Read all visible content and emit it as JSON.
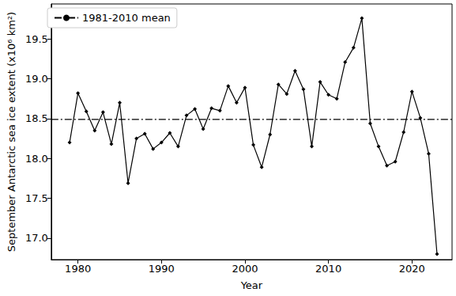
{
  "chart_data": {
    "type": "line",
    "x_label": "Year",
    "y_label": "September Antarctic sea ice extent (x10⁶ km²)",
    "x": [
      1979,
      1980,
      1981,
      1982,
      1983,
      1984,
      1985,
      1986,
      1987,
      1988,
      1989,
      1990,
      1991,
      1992,
      1993,
      1994,
      1995,
      1996,
      1997,
      1998,
      1999,
      2000,
      2001,
      2002,
      2003,
      2004,
      2005,
      2006,
      2007,
      2008,
      2009,
      2010,
      2011,
      2012,
      2013,
      2014,
      2015,
      2016,
      2017,
      2018,
      2019,
      2020,
      2021,
      2022,
      2023
    ],
    "series": [
      {
        "color": "#000000",
        "marker": "diamond",
        "line_style": "solid",
        "values": [
          18.2,
          18.82,
          18.59,
          18.35,
          18.58,
          18.18,
          18.7,
          17.69,
          18.25,
          18.31,
          18.12,
          18.2,
          18.32,
          18.15,
          18.54,
          18.62,
          18.37,
          18.63,
          18.6,
          18.91,
          18.7,
          18.89,
          18.17,
          17.89,
          18.3,
          18.93,
          18.81,
          19.1,
          18.87,
          18.15,
          18.96,
          18.8,
          18.75,
          19.21,
          19.39,
          19.76,
          18.44,
          18.15,
          17.91,
          17.96,
          18.33,
          18.84,
          18.51,
          18.06,
          16.8
        ]
      }
    ],
    "hlines": [
      {
        "name": "1981-2010 mean",
        "value": 18.49,
        "color": "#000000",
        "line_style": "dashdot"
      }
    ],
    "xlim": [
      1976.8,
      2024.8
    ],
    "xticks": [
      1980,
      1990,
      2000,
      2010,
      2020
    ],
    "ylim": [
      16.73,
      19.94
    ],
    "yticks": [
      {
        "value": 17.0,
        "label": "17.0"
      },
      {
        "value": 17.5,
        "label": "17.5"
      },
      {
        "value": 18.0,
        "label": "18.0"
      },
      {
        "value": 18.5,
        "label": "18.5"
      },
      {
        "value": 19.0,
        "label": "19.0"
      },
      {
        "value": 19.5,
        "label": "19.5"
      }
    ],
    "grid": false,
    "legend": "upper left"
  }
}
